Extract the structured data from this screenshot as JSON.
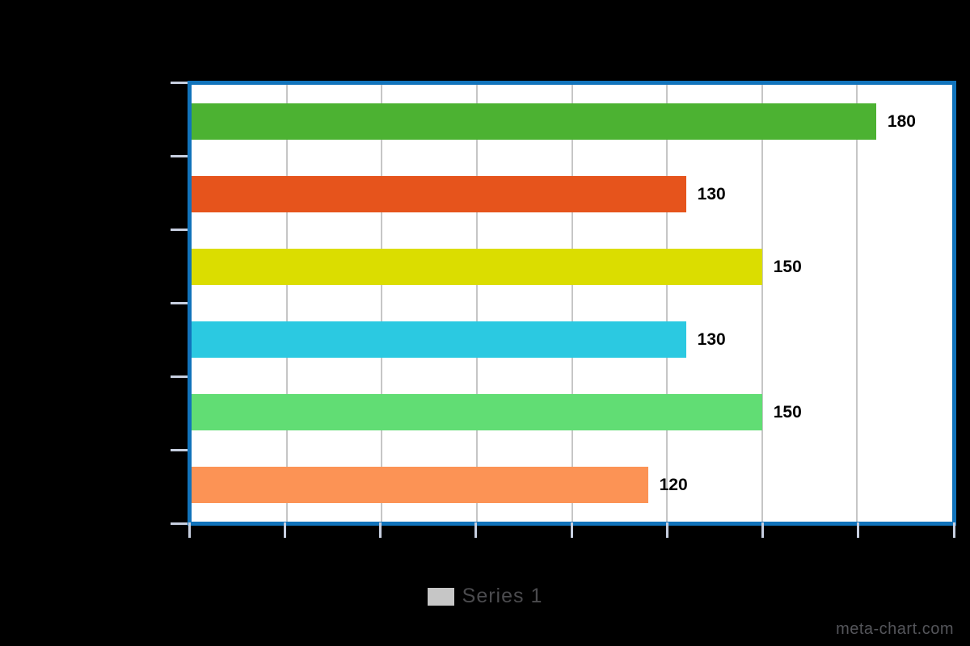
{
  "page": {
    "background": "#000000"
  },
  "chart_data": {
    "type": "bar",
    "orientation": "horizontal",
    "series": [
      {
        "name": "Series 1",
        "values": [
          180,
          130,
          150,
          130,
          150,
          120
        ]
      }
    ],
    "data_labels": [
      "180",
      "130",
      "150",
      "130",
      "150",
      "120"
    ],
    "bar_colors": [
      "#4cb232",
      "#e6541c",
      "#dbdd00",
      "#2bc9e1",
      "#61dd74",
      "#fc9355"
    ],
    "xlim": [
      0,
      200
    ],
    "x_gridline_step": 25,
    "grid": true,
    "legend_position": "bottom-center",
    "plot_background": "#ffffff",
    "page_background": "#000000",
    "border_color": "#1173bb",
    "grid_color": "#c6c6c6",
    "tick_color": "#c7cfe0",
    "value_label_color": "#000000"
  },
  "legend": {
    "label": "Series 1",
    "swatch_color": "#c6c6c6",
    "text_color": "#4b4b4e"
  },
  "watermark": {
    "text": "meta-chart.com",
    "color": "#54555a"
  }
}
